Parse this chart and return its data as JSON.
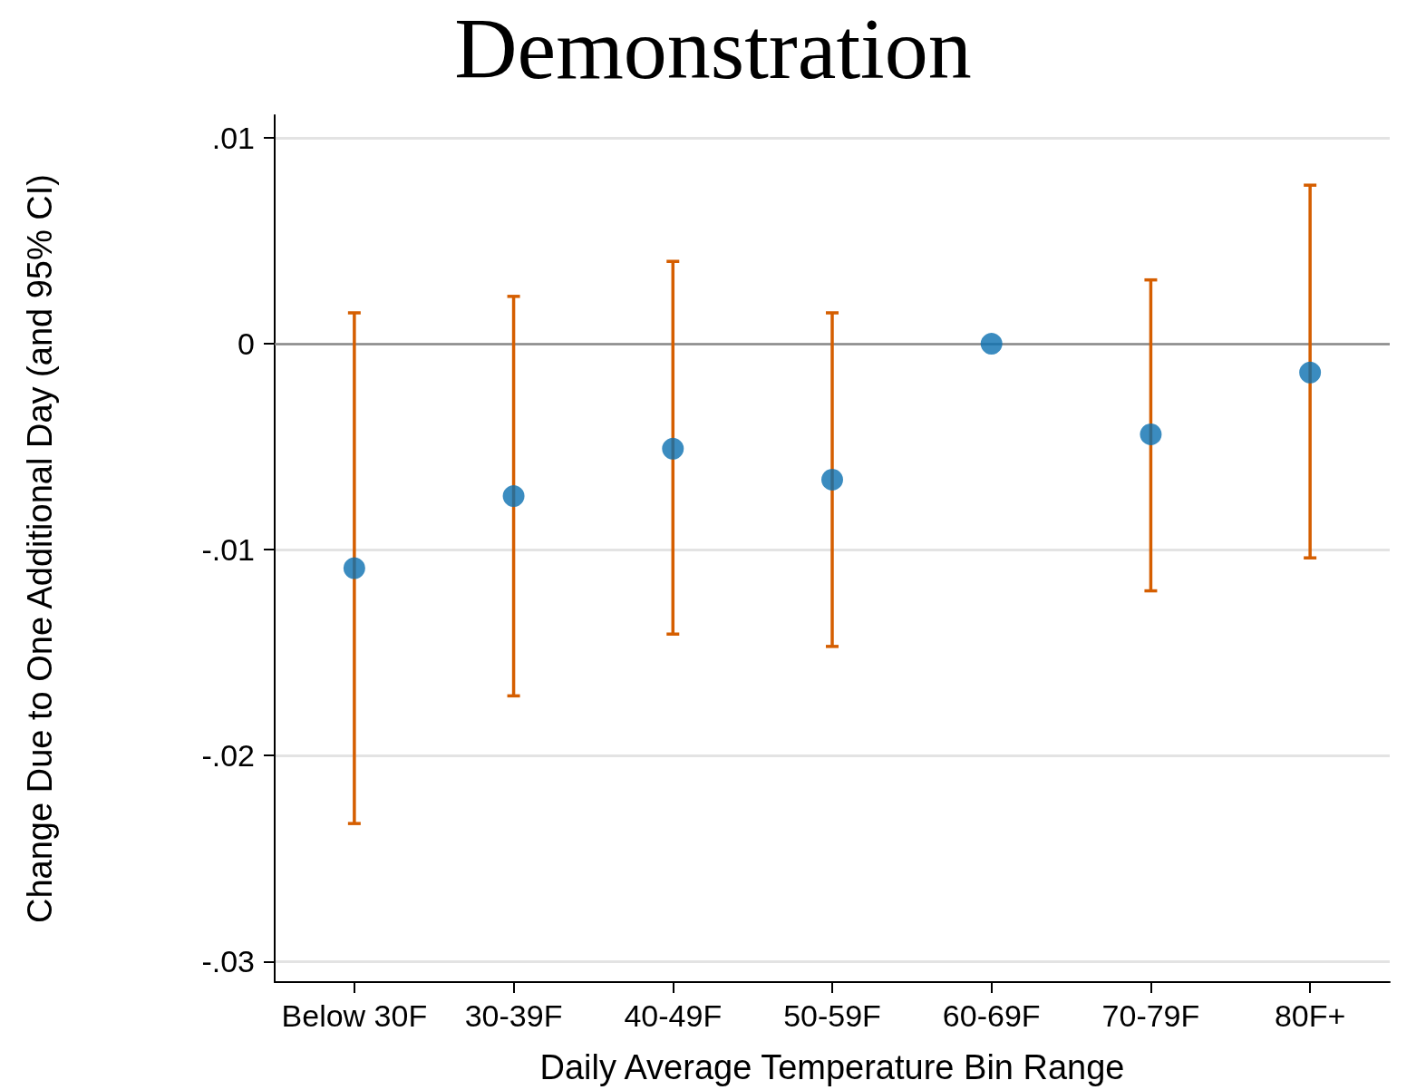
{
  "chart_data": {
    "type": "scatter",
    "title": "Demonstration",
    "xlabel": "Daily Average Temperature Bin Range",
    "ylabel": "Change Due to One Additional Day (and 95% CI)",
    "categories": [
      "Below 30F",
      "30-39F",
      "40-49F",
      "50-59F",
      "60-69F",
      "70-79F",
      "80F+"
    ],
    "series": [
      {
        "color": "#0a6fb0",
        "values": [
          -0.0109,
          -0.0074,
          -0.0051,
          -0.0066,
          0,
          -0.0044,
          -0.0014
        ],
        "errors": [
          [
            -0.0233,
            0.0015
          ],
          [
            -0.0171,
            0.0023
          ],
          [
            -0.0141,
            0.004
          ],
          [
            -0.0147,
            0.0015
          ],
          null,
          [
            -0.012,
            0.0031
          ],
          [
            -0.0104,
            0.0077
          ]
        ]
      }
    ],
    "ylim": [
      -0.031,
      0.0111
    ],
    "yticks": [
      {
        "value": -0.03,
        "label": "-.03"
      },
      {
        "value": -0.02,
        "label": "-.02"
      },
      {
        "value": -0.01,
        "label": "-.01"
      },
      0,
      {
        "value": 0.01,
        "label": ".01"
      }
    ],
    "ref_lines": [
      {
        "axis": "y",
        "value": 0,
        "color": "#8a8a8a"
      }
    ],
    "grid": "y",
    "marker": "circle"
  }
}
